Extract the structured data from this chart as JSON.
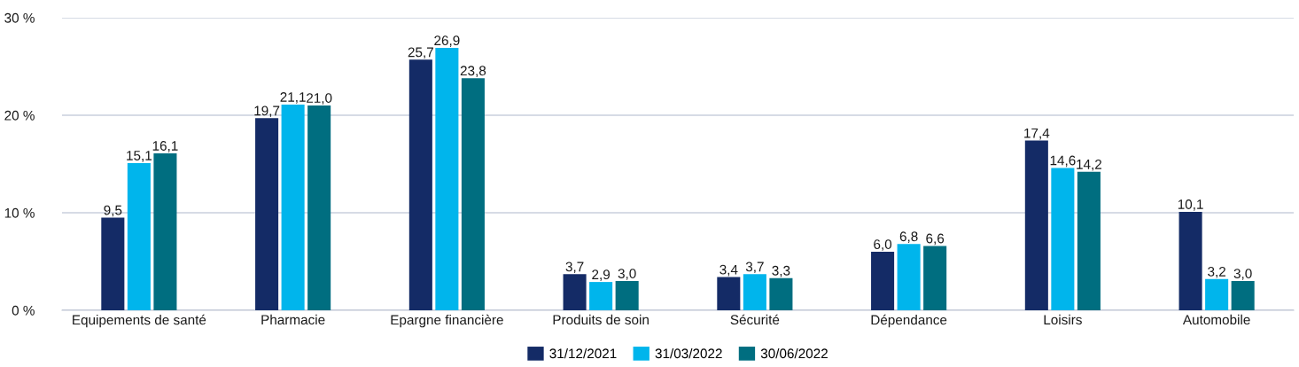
{
  "chart_data": {
    "type": "bar",
    "categories": [
      "Equipements de santé",
      "Pharmacie",
      "Epargne financière",
      "Produits de soin",
      "Sécurité",
      "Dépendance",
      "Loisirs",
      "Automobile"
    ],
    "series": [
      {
        "name": "31/12/2021",
        "color": "#142b66",
        "values": [
          9.5,
          19.7,
          25.7,
          3.7,
          3.4,
          6.0,
          17.4,
          10.1
        ],
        "value_labels": [
          "9,5",
          "19,7",
          "25,7",
          "3,7",
          "3,4",
          "6,0",
          "17,4",
          "10,1"
        ]
      },
      {
        "name": "31/03/2022",
        "color": "#00b5ec",
        "values": [
          15.1,
          21.1,
          26.9,
          2.9,
          3.7,
          6.8,
          14.6,
          3.2
        ],
        "value_labels": [
          "15,1",
          "21,1",
          "26,9",
          "2,9",
          "3,7",
          "6,8",
          "14,6",
          "3,2"
        ]
      },
      {
        "name": "30/06/2022",
        "color": "#006e80",
        "values": [
          16.1,
          21.0,
          23.8,
          3.0,
          3.3,
          6.6,
          14.2,
          3.0
        ],
        "value_labels": [
          "16,1",
          "21,0",
          "23,8",
          "3,0",
          "3,3",
          "6,6",
          "14,2",
          "3,0"
        ]
      }
    ],
    "ylim": [
      0,
      30
    ],
    "yticks": [
      {
        "value": 0,
        "label": "0 %"
      },
      {
        "value": 10,
        "label": "10 %"
      },
      {
        "value": 20,
        "label": "20 %"
      },
      {
        "value": 30,
        "label": "30 %"
      }
    ],
    "grid": "y",
    "legend": "bottom"
  }
}
